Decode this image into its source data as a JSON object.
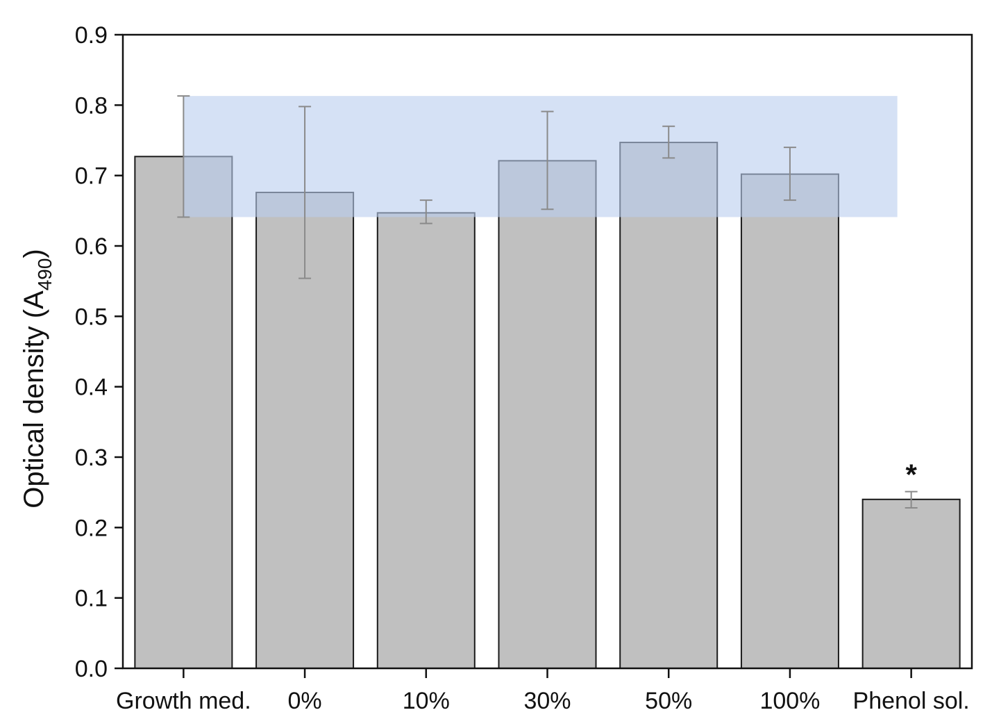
{
  "chart_data": {
    "type": "bar",
    "title": "",
    "xlabel": "",
    "ylabel": "Optical density (A",
    "ylabel_subscript": "490",
    "ylabel_close": ")",
    "ylim": [
      0,
      0.9
    ],
    "yticks": [
      0.0,
      0.1,
      0.2,
      0.3,
      0.4,
      0.5,
      0.6,
      0.7,
      0.8,
      0.9
    ],
    "ytick_labels": [
      "0.0",
      "0.1",
      "0.2",
      "0.3",
      "0.4",
      "0.5",
      "0.6",
      "0.7",
      "0.8",
      "0.9"
    ],
    "categories": [
      "Growth med.",
      "0%",
      "10%",
      "30%",
      "50%",
      "100%",
      "Phenol sol."
    ],
    "values": [
      0.727,
      0.676,
      0.647,
      0.721,
      0.747,
      0.702,
      0.24
    ],
    "error_low": [
      0.641,
      0.554,
      0.632,
      0.652,
      0.725,
      0.665,
      0.228
    ],
    "error_high": [
      0.813,
      0.798,
      0.665,
      0.791,
      0.77,
      0.74,
      0.251
    ],
    "reference_band": {
      "low": 0.641,
      "high": 0.813,
      "from_category": 0,
      "to_category": 6,
      "color": "#b9cdee"
    },
    "annotations": [
      {
        "category": 6,
        "text": "*"
      }
    ],
    "grid": false,
    "colors": {
      "bar_fill": "#c0c0c0",
      "bar_stroke": "#1a1a1a",
      "error_bar": "#8a8a8a",
      "axis": "#111111"
    }
  }
}
